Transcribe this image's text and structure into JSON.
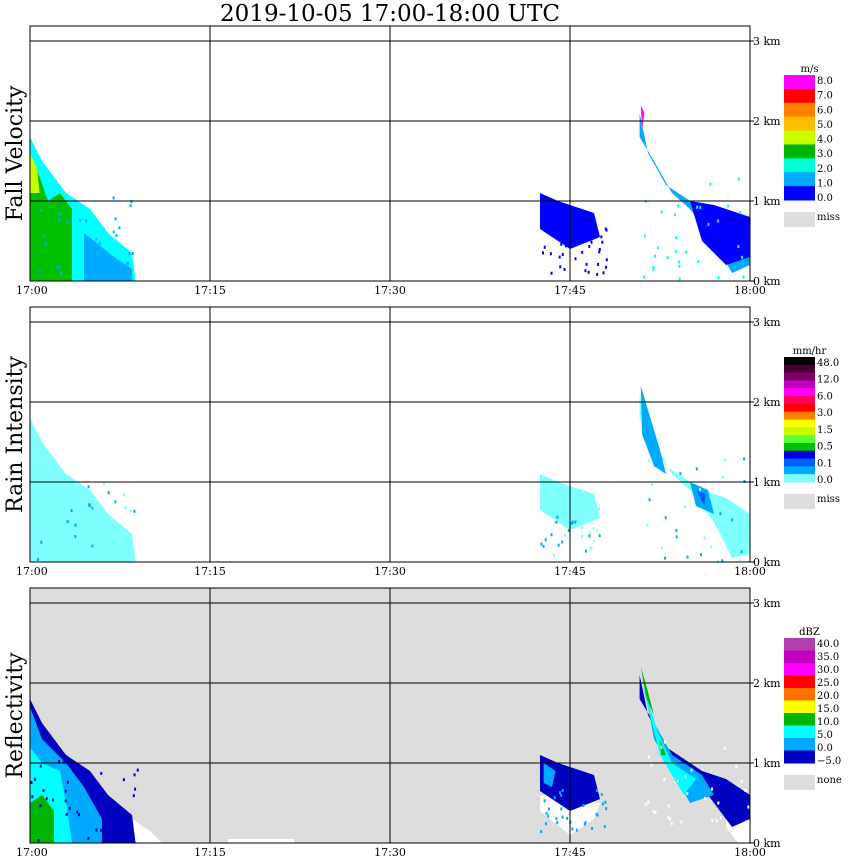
{
  "title": "2019-10-05   17:00-18:00 UTC",
  "chart_data": [
    {
      "type": "heatmap",
      "panel": "Fall Velocity",
      "ylabel": "Fall Velocity",
      "x_ticks": [
        "17:00",
        "17:15",
        "17:30",
        "17:45",
        "18:00"
      ],
      "y_ticks": [
        "0 km",
        "1 km",
        "2 km",
        "3 km"
      ],
      "xlim": [
        "17:00",
        "18:00"
      ],
      "ylim_km": [
        0,
        3.2
      ],
      "grid": true,
      "background": "#ffffff",
      "colorbar": {
        "unit": "m/s",
        "labels": [
          "8.0",
          "7.0",
          "6.0",
          "5.0",
          "4.0",
          "3.0",
          "2.0",
          "1.0",
          "0.0"
        ],
        "colors": [
          "#ff00ff",
          "#ff0000",
          "#ff7f00",
          "#ffbf00",
          "#c8ff00",
          "#00b400",
          "#00ffd0",
          "#00aaff",
          "#0000ff"
        ],
        "missing_label": "miss",
        "missing_color": "#dddddd"
      },
      "echoes": [
        {
          "start": "17:00",
          "end": "17:09",
          "top_km": 1.8,
          "value": "2.0-5.0"
        },
        {
          "start": "17:43",
          "end": "17:48",
          "top_km": 1.1,
          "value": "0.5-1.0"
        },
        {
          "start": "17:50",
          "end": "18:00",
          "top_km": 2.2,
          "value": "1.0-3.0"
        }
      ]
    },
    {
      "type": "heatmap",
      "panel": "Rain Intensity",
      "ylabel": "Rain Intensity",
      "x_ticks": [
        "17:00",
        "17:15",
        "17:30",
        "17:45",
        "18:00"
      ],
      "y_ticks": [
        "0 km",
        "1 km",
        "2 km",
        "3 km"
      ],
      "xlim": [
        "17:00",
        "18:00"
      ],
      "ylim_km": [
        0,
        3.2
      ],
      "grid": true,
      "background": "#ffffff",
      "colorbar": {
        "unit": "mm/hr",
        "labels": [
          "48.0",
          "12.0",
          "6.0",
          "3.0",
          "1.5",
          "0.5",
          "0.1",
          "0.0"
        ],
        "colors": [
          "#000000",
          "#4b0033",
          "#80006b",
          "#c000c0",
          "#ff00ff",
          "#ff0060",
          "#ff0000",
          "#ff8000",
          "#ffff00",
          "#c8ff00",
          "#60ff30",
          "#00c000",
          "#0000e6",
          "#0060ff",
          "#00aaff",
          "#80ffff"
        ],
        "missing_label": "miss",
        "missing_color": "#dddddd"
      },
      "echoes": [
        {
          "start": "17:00",
          "end": "17:09",
          "top_km": 1.8,
          "value": "0.1"
        },
        {
          "start": "17:43",
          "end": "17:48",
          "top_km": 1.1,
          "value": "0.1"
        },
        {
          "start": "17:50",
          "end": "18:00",
          "top_km": 2.2,
          "value": "0.1-0.5"
        }
      ]
    },
    {
      "type": "heatmap",
      "panel": "Reflectivity",
      "ylabel": "Reflectivity",
      "x_ticks": [
        "17:00",
        "17:15",
        "17:30",
        "17:45",
        "18:00"
      ],
      "y_ticks": [
        "0 km",
        "1 km",
        "2 km",
        "3 km"
      ],
      "xlim": [
        "17:00",
        "18:00"
      ],
      "ylim_km": [
        0,
        3.2
      ],
      "grid": true,
      "background": "#dddddd",
      "colorbar": {
        "unit": "dBZ",
        "labels": [
          "40.0",
          "35.0",
          "30.0",
          "25.0",
          "20.0",
          "15.0",
          "10.0",
          "5.0",
          "0.0",
          "−5.0"
        ],
        "colors": [
          "#b040b0",
          "#c000c0",
          "#ff00ff",
          "#ff0000",
          "#ff7000",
          "#ffff00",
          "#00b400",
          "#00ffff",
          "#00aaff",
          "#0000c0"
        ],
        "missing_label": "none",
        "missing_color": "#dddddd"
      },
      "echoes": [
        {
          "start": "17:00",
          "end": "17:09",
          "top_km": 1.8,
          "value": "0.0-15.0"
        },
        {
          "start": "17:43",
          "end": "17:48",
          "top_km": 1.1,
          "value": "-5.0-5.0"
        },
        {
          "start": "17:50",
          "end": "18:00",
          "top_km": 2.2,
          "value": "-5.0-15.0"
        }
      ]
    }
  ]
}
